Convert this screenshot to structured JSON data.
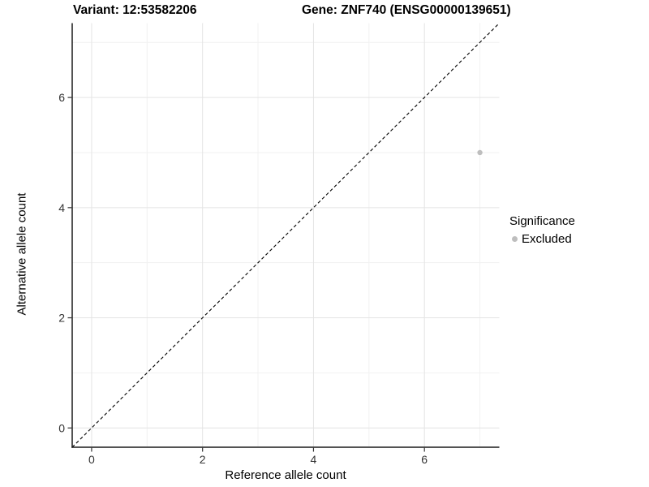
{
  "chart_data": {
    "type": "scatter",
    "title_left": "Variant: 12:53582206",
    "title_right": "Gene: ZNF740 (ENSG00000139651)",
    "xlabel": "Reference allele count",
    "ylabel": "Alternative allele count",
    "xlim": [
      -0.35,
      7.35
    ],
    "ylim": [
      -0.35,
      7.35
    ],
    "x_ticks": [
      0,
      2,
      4,
      6
    ],
    "y_ticks": [
      0,
      2,
      4,
      6
    ],
    "x_minor_gridlines": [
      1,
      3,
      5,
      7
    ],
    "y_minor_gridlines": [
      1,
      3,
      5,
      7
    ],
    "grid": true,
    "reference_line": {
      "type": "abline",
      "slope": 1,
      "intercept": 0,
      "style": "dashed",
      "color": "#000000"
    },
    "series": [
      {
        "name": "Excluded",
        "color": "#BEBEBE",
        "points": [
          {
            "x": 7,
            "y": 5
          }
        ]
      }
    ],
    "legend": {
      "title": "Significance",
      "position": "right",
      "items": [
        {
          "label": "Excluded",
          "color": "#BEBEBE"
        }
      ]
    },
    "colors": {
      "background": "#FFFFFF",
      "grid_major": "#E4E4E4",
      "grid_minor": "#F1F1F1",
      "axis_line": "#1A1A1A",
      "tick_mark": "#333333",
      "tick_label": "#333333",
      "point": "#BEBEBE"
    }
  }
}
